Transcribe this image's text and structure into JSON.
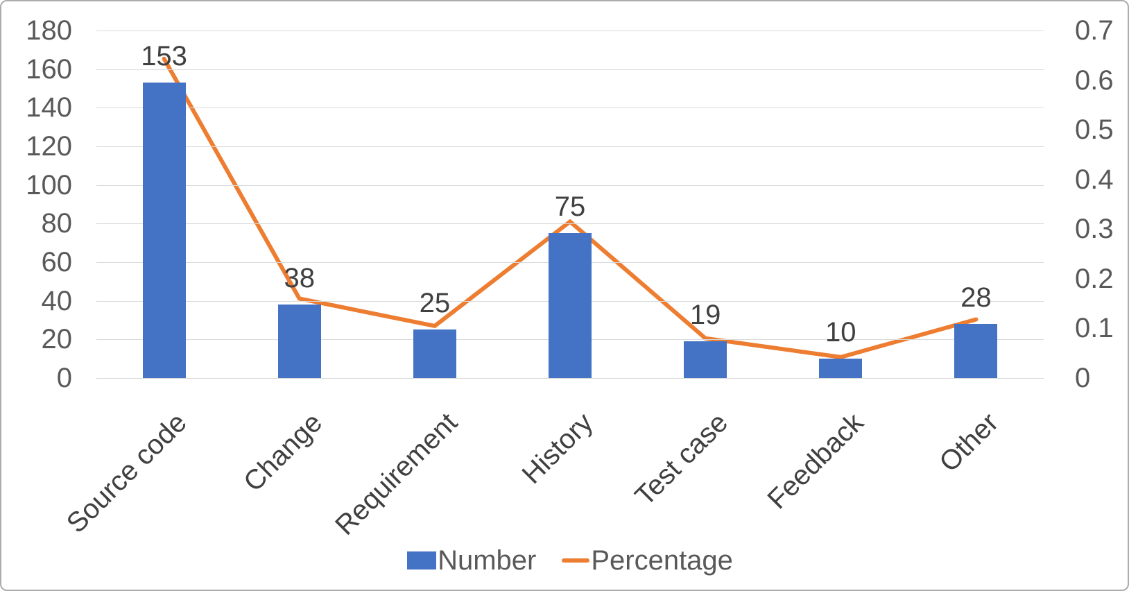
{
  "chart_data": {
    "type": "combo-bar-line",
    "categories": [
      "Source code",
      "Change",
      "Requirement",
      "History",
      "Test case",
      "Feedback",
      "Other"
    ],
    "series": [
      {
        "name": "Number",
        "type": "bar",
        "axis": "left",
        "values": [
          153,
          38,
          25,
          75,
          19,
          10,
          28
        ]
      },
      {
        "name": "Percentage",
        "type": "line",
        "axis": "right",
        "values": [
          0.643,
          0.16,
          0.105,
          0.315,
          0.08,
          0.042,
          0.118
        ]
      }
    ],
    "bar_data_labels": [
      "153",
      "38",
      "25",
      "75",
      "19",
      "10",
      "28"
    ],
    "left_axis": {
      "min": 0,
      "max": 180,
      "step": 20,
      "tick_labels": [
        "0",
        "20",
        "40",
        "60",
        "80",
        "100",
        "120",
        "140",
        "160",
        "180"
      ]
    },
    "right_axis": {
      "min": 0,
      "max": 0.7,
      "step": 0.1,
      "tick_labels": [
        "0",
        "0.1",
        "0.2",
        "0.3",
        "0.4",
        "0.5",
        "0.6",
        "0.7"
      ]
    },
    "grid": true,
    "legend_position": "bottom"
  },
  "legend": {
    "items": [
      {
        "label": "Number",
        "marker": "square"
      },
      {
        "label": "Percentage",
        "marker": "line"
      }
    ]
  },
  "colors": {
    "bar": "#4472c4",
    "line": "#ed7d31",
    "gridline": "#d9d9d9",
    "tick_text": "#595959",
    "label_text": "#404040",
    "frame_border": "#ababab"
  }
}
